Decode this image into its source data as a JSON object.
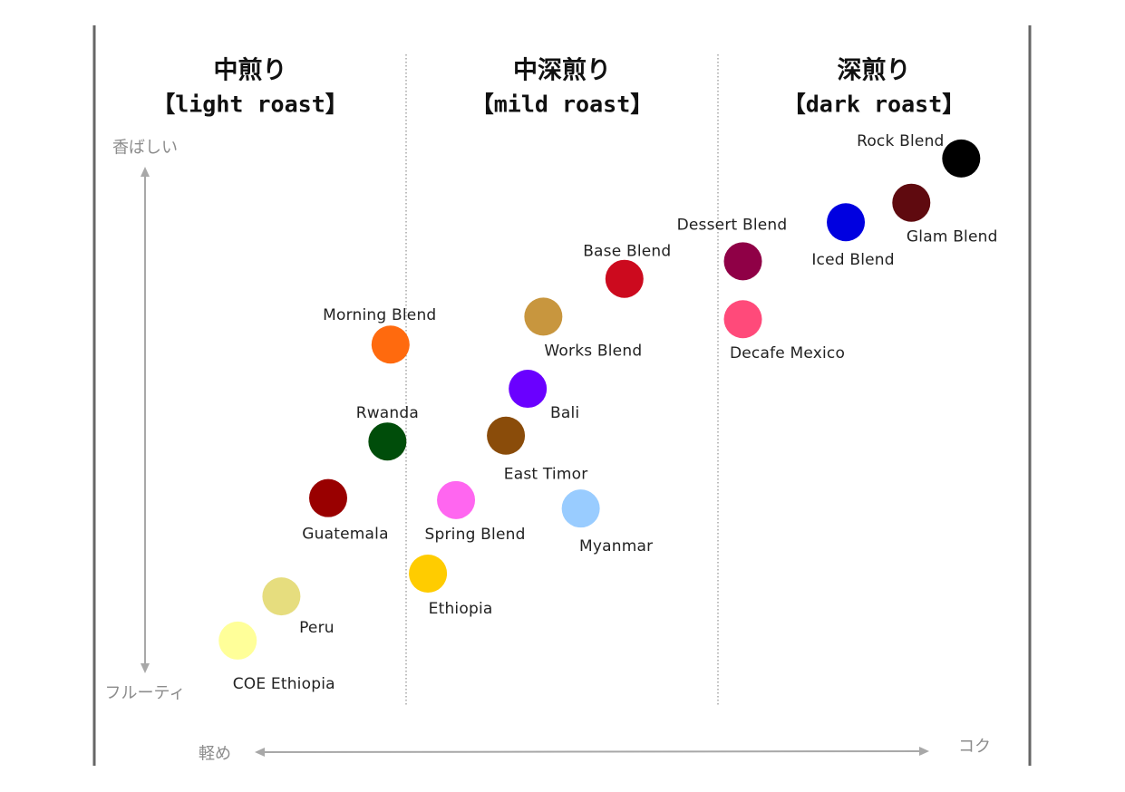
{
  "colors": {
    "background": "#ffffff",
    "frame": "#666666",
    "divider": "#8f8f8f",
    "axis_arrow": "#a8a8a8",
    "axis_text": "#8c8c8c",
    "label_text": "#222222"
  },
  "chart_data": {
    "type": "scatter",
    "grid": false,
    "xlim": [
      0,
      30
    ],
    "ylim": [
      0,
      10
    ],
    "x_axis": {
      "low_label": "軽め",
      "high_label": "コク"
    },
    "y_axis": {
      "low_label": "フルーティ",
      "high_label": "香ばしい"
    },
    "regions": [
      {
        "name": "中煎り",
        "subtitle": "【light roast】",
        "x_range": [
          0,
          10
        ]
      },
      {
        "name": "中深煎り",
        "subtitle": "【mild roast】",
        "x_range": [
          10,
          20
        ]
      },
      {
        "name": "深煎り",
        "subtitle": "【dark roast】",
        "x_range": [
          20,
          30
        ]
      }
    ],
    "points": [
      {
        "name": "Rock Blend",
        "x": 27.8,
        "y": 8.4,
        "color": "#000000"
      },
      {
        "name": "Glam Blend",
        "x": 26.2,
        "y": 7.72,
        "color": "#5f0a0f"
      },
      {
        "name": "Iced Blend",
        "x": 24.1,
        "y": 7.42,
        "color": "#0000e0"
      },
      {
        "name": "Dessert Blend",
        "x": 20.8,
        "y": 6.82,
        "color": "#8f0046"
      },
      {
        "name": "Decafe Mexico",
        "x": 20.8,
        "y": 5.93,
        "color": "#ff4a7a"
      },
      {
        "name": "Base Blend",
        "x": 17.0,
        "y": 6.55,
        "color": "#cc0a1e"
      },
      {
        "name": "Works Blend",
        "x": 14.4,
        "y": 5.97,
        "color": "#c8963e"
      },
      {
        "name": "Morning Blend",
        "x": 9.5,
        "y": 5.54,
        "color": "#ff6a0e"
      },
      {
        "name": "Bali",
        "x": 13.9,
        "y": 4.86,
        "color": "#6a00ff"
      },
      {
        "name": "Rwanda",
        "x": 9.4,
        "y": 4.05,
        "color": "#004d0a"
      },
      {
        "name": "East Timor",
        "x": 13.2,
        "y": 4.14,
        "color": "#8a4c0a"
      },
      {
        "name": "Guatemala",
        "x": 7.5,
        "y": 3.18,
        "color": "#990000"
      },
      {
        "name": "Spring Blend",
        "x": 11.6,
        "y": 3.15,
        "color": "#ff66f0"
      },
      {
        "name": "Myanmar",
        "x": 15.6,
        "y": 3.02,
        "color": "#99ccff"
      },
      {
        "name": "Ethiopia",
        "x": 10.7,
        "y": 2.02,
        "color": "#ffcc00"
      },
      {
        "name": "Peru",
        "x": 6.0,
        "y": 1.67,
        "color": "#e6dd7e"
      },
      {
        "name": "COE Ethiopia",
        "x": 4.6,
        "y": 0.99,
        "color": "#ffff99"
      }
    ]
  }
}
